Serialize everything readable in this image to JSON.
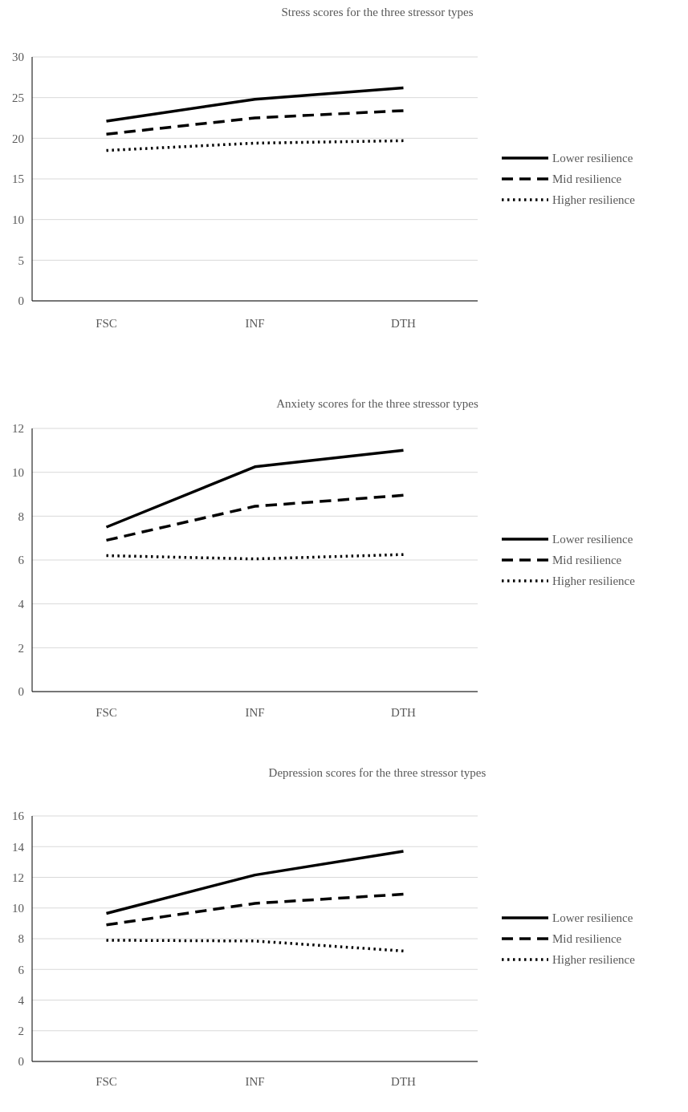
{
  "chart_data": [
    {
      "type": "line",
      "title": "Stress scores for the three stressor types",
      "categories": [
        "FSC",
        "INF",
        "DTH"
      ],
      "ylim": [
        0,
        30
      ],
      "yticks": [
        0,
        5,
        10,
        15,
        20,
        25,
        30
      ],
      "grid": "y",
      "legend": "right",
      "series": [
        {
          "name": "Lower resilience",
          "color": "#000000",
          "line_style": "solid",
          "values": [
            22.1,
            24.8,
            26.2
          ]
        },
        {
          "name": "Mid resilience",
          "color": "#000000",
          "line_style": "dashed",
          "values": [
            20.5,
            22.5,
            23.4
          ]
        },
        {
          "name": "Higher resilience",
          "color": "#000000",
          "line_style": "dotted",
          "values": [
            18.5,
            19.4,
            19.7
          ]
        }
      ]
    },
    {
      "type": "line",
      "title": "Anxiety scores for the three stressor types",
      "categories": [
        "FSC",
        "INF",
        "DTH"
      ],
      "ylim": [
        0,
        12
      ],
      "yticks": [
        0,
        2,
        4,
        6,
        8,
        10,
        12
      ],
      "grid": "y",
      "legend": "right",
      "series": [
        {
          "name": "Lower resilience",
          "color": "#000000",
          "line_style": "solid",
          "values": [
            7.5,
            10.25,
            11.0
          ]
        },
        {
          "name": "Mid resilience",
          "color": "#000000",
          "line_style": "dashed",
          "values": [
            6.9,
            8.45,
            8.95
          ]
        },
        {
          "name": "Higher resilience",
          "color": "#000000",
          "line_style": "dotted",
          "values": [
            6.2,
            6.05,
            6.25
          ]
        }
      ]
    },
    {
      "type": "line",
      "title": "Depression scores for the three stressor types",
      "categories": [
        "FSC",
        "INF",
        "DTH"
      ],
      "ylim": [
        0,
        16
      ],
      "yticks": [
        0,
        2,
        4,
        6,
        8,
        10,
        12,
        14,
        16
      ],
      "grid": "y",
      "legend": "right",
      "series": [
        {
          "name": "Lower resilience",
          "color": "#000000",
          "line_style": "solid",
          "values": [
            9.65,
            12.15,
            13.7
          ]
        },
        {
          "name": "Mid resilience",
          "color": "#000000",
          "line_style": "dashed",
          "values": [
            8.9,
            10.3,
            10.9
          ]
        },
        {
          "name": "Higher resilience",
          "color": "#000000",
          "line_style": "dotted",
          "values": [
            7.9,
            7.85,
            7.2
          ]
        }
      ]
    }
  ]
}
